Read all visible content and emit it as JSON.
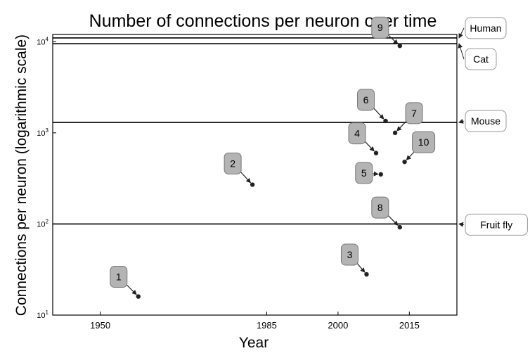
{
  "chart_data": {
    "type": "scatter",
    "title": "Number of connections per neuron over time",
    "xlabel": "Year",
    "ylabel": "Connections per neuron (logarithmic scale)",
    "y_scale": "log",
    "xlim": [
      1940,
      2025
    ],
    "ylim": [
      10,
      12000
    ],
    "xticks": [
      1950,
      1985,
      2000,
      2015
    ],
    "yticks": [
      {
        "value": 10,
        "base": "10",
        "exp": "1"
      },
      {
        "value": 100,
        "base": "10",
        "exp": "2"
      },
      {
        "value": 1000,
        "base": "10",
        "exp": "3"
      },
      {
        "value": 10000,
        "base": "10",
        "exp": "4"
      }
    ],
    "grid": false,
    "reference_lines": [
      {
        "label": "Human",
        "value": 11000
      },
      {
        "label": "Cat",
        "value": 9500
      },
      {
        "label": "Mouse",
        "value": 1300
      },
      {
        "label": "Fruit fly",
        "value": 100
      }
    ],
    "points": [
      {
        "label": "1",
        "x": 1958,
        "y": 16
      },
      {
        "label": "2",
        "x": 1982,
        "y": 270
      },
      {
        "label": "3",
        "x": 2006,
        "y": 28
      },
      {
        "label": "4",
        "x": 2008,
        "y": 600
      },
      {
        "label": "5",
        "x": 2009,
        "y": 350
      },
      {
        "label": "6",
        "x": 2010,
        "y": 1350
      },
      {
        "label": "7",
        "x": 2012,
        "y": 1000
      },
      {
        "label": "8",
        "x": 2013,
        "y": 92
      },
      {
        "label": "9",
        "x": 2013,
        "y": 9000
      },
      {
        "label": "10",
        "x": 2014,
        "y": 480
      }
    ]
  }
}
